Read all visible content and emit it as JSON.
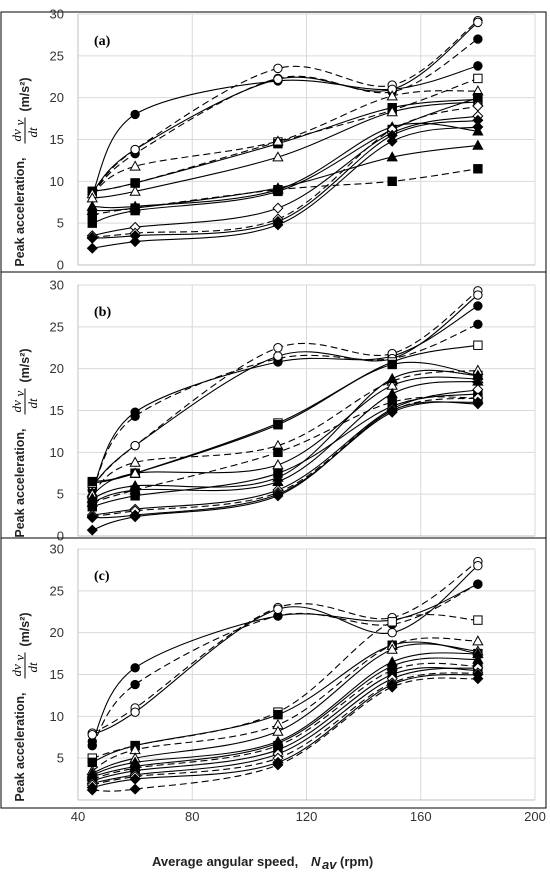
{
  "chart_data": [
    {
      "type": "line",
      "panel_label": "(a)",
      "ylabel_text": "Peak acceleration,",
      "ylabel_math_top": "dv",
      "ylabel_math_sub": "v",
      "ylabel_math_bottom": "dt",
      "ylabel_unit": "(m/s²)",
      "xlim": [
        40,
        200
      ],
      "ylim": [
        0,
        30
      ],
      "yticks": [
        "0",
        "5",
        "10",
        "15",
        "20",
        "25",
        "30"
      ],
      "x": [
        45,
        60,
        110,
        150,
        180
      ],
      "series": [
        {
          "marker": "circle-filled",
          "dash": false,
          "values": [
            8.5,
            18,
            22,
            21,
            23.8
          ]
        },
        {
          "marker": "circle-filled",
          "dash": true,
          "values": [
            8.5,
            13.3,
            22.3,
            20.7,
            27
          ]
        },
        {
          "marker": "circle-open",
          "dash": true,
          "values": [
            8.5,
            13.8,
            23.5,
            21.5,
            29.2
          ]
        },
        {
          "marker": "circle-open",
          "dash": false,
          "values": [
            8.7,
            13.8,
            22.2,
            21,
            29
          ]
        },
        {
          "marker": "square-open",
          "dash": true,
          "values": [
            8.8,
            9.8,
            14.7,
            18.5,
            22.3
          ]
        },
        {
          "marker": "square-filled",
          "dash": false,
          "values": [
            8.8,
            9.8,
            14.5,
            18.8,
            19.8
          ]
        },
        {
          "marker": "triangle-open",
          "dash": true,
          "values": [
            8.5,
            11.8,
            14.8,
            20.2,
            20.8
          ]
        },
        {
          "marker": "triangle-open",
          "dash": false,
          "values": [
            8.0,
            8.8,
            12.9,
            18.3,
            19.5
          ]
        },
        {
          "marker": "triangle-filled",
          "dash": false,
          "values": [
            7.0,
            7.0,
            9.0,
            16.5,
            16.0
          ]
        },
        {
          "marker": "triangle-filled",
          "dash": false,
          "values": [
            6.5,
            6.8,
            9.2,
            12.9,
            14.3
          ]
        },
        {
          "marker": "square-filled",
          "dash": true,
          "values": [
            6.0,
            6.8,
            9.0,
            10.0,
            11.5
          ]
        },
        {
          "marker": "square-filled",
          "dash": false,
          "values": [
            5.0,
            6.5,
            8.8,
            16.2,
            20
          ]
        },
        {
          "marker": "diamond-open",
          "dash": false,
          "values": [
            3.5,
            4.5,
            6.8,
            15.8,
            17.8
          ]
        },
        {
          "marker": "diamond-open",
          "dash": true,
          "values": [
            3.3,
            3.8,
            5.5,
            16.2,
            19.0
          ]
        },
        {
          "marker": "diamond-filled",
          "dash": false,
          "values": [
            3.2,
            3.5,
            5.2,
            15.5,
            17.3
          ]
        },
        {
          "marker": "diamond-filled",
          "dash": false,
          "values": [
            2.0,
            2.8,
            4.8,
            14.8,
            16.5
          ]
        }
      ]
    },
    {
      "type": "line",
      "panel_label": "(b)",
      "ylabel_text": "Peak acceleration,",
      "ylabel_math_top": "dv",
      "ylabel_math_sub": "v",
      "ylabel_math_bottom": "dt",
      "ylabel_unit": "(m/s²)",
      "xlim": [
        40,
        200
      ],
      "ylim": [
        0,
        30
      ],
      "yticks": [
        "0",
        "5",
        "10",
        "15",
        "20",
        "25",
        "30"
      ],
      "x": [
        45,
        60,
        110,
        150,
        180
      ],
      "series": [
        {
          "marker": "circle-filled",
          "dash": false,
          "values": [
            5.5,
            14.8,
            20.8,
            21.5,
            27.5
          ]
        },
        {
          "marker": "circle-filled",
          "dash": true,
          "values": [
            5.5,
            14.3,
            21.2,
            21.2,
            25.3
          ]
        },
        {
          "marker": "circle-open",
          "dash": true,
          "values": [
            6.0,
            10.8,
            22.5,
            21.8,
            29.3
          ]
        },
        {
          "marker": "circle-open",
          "dash": false,
          "values": [
            6.0,
            10.8,
            21.5,
            21.2,
            28.8
          ]
        },
        {
          "marker": "square-open",
          "dash": false,
          "values": [
            6.3,
            7.5,
            13.5,
            20.8,
            22.8
          ]
        },
        {
          "marker": "square-filled",
          "dash": false,
          "values": [
            6.5,
            7.5,
            13.3,
            20.5,
            19.2
          ]
        },
        {
          "marker": "triangle-open",
          "dash": true,
          "values": [
            5.2,
            8.8,
            10.8,
            18.5,
            19.8
          ]
        },
        {
          "marker": "triangle-open",
          "dash": false,
          "values": [
            5.0,
            7.5,
            8.5,
            18.0,
            18.8
          ]
        },
        {
          "marker": "triangle-filled",
          "dash": false,
          "values": [
            4.5,
            6.0,
            7.0,
            18.8,
            19.2
          ]
        },
        {
          "marker": "triangle-filled",
          "dash": false,
          "values": [
            4.0,
            5.5,
            6.5,
            17.0,
            18.5
          ]
        },
        {
          "marker": "square-filled",
          "dash": true,
          "values": [
            4.0,
            5.5,
            10.0,
            16.0,
            16.5
          ]
        },
        {
          "marker": "square-filled",
          "dash": false,
          "values": [
            3.5,
            4.8,
            7.5,
            15.5,
            17.0
          ]
        },
        {
          "marker": "diamond-open",
          "dash": false,
          "values": [
            2.5,
            3.2,
            5.5,
            15.2,
            17.5
          ]
        },
        {
          "marker": "diamond-open",
          "dash": true,
          "values": [
            2.3,
            3.0,
            5.2,
            15.0,
            16.5
          ]
        },
        {
          "marker": "diamond-filled",
          "dash": false,
          "values": [
            2.2,
            2.5,
            5.0,
            14.8,
            16.0
          ]
        },
        {
          "marker": "diamond-filled",
          "dash": false,
          "values": [
            0.7,
            2.3,
            4.8,
            15.0,
            15.8
          ]
        }
      ]
    },
    {
      "type": "line",
      "panel_label": "(c)",
      "ylabel_text": "Peak acceleration,",
      "ylabel_math_top": "dv",
      "ylabel_math_sub": "v",
      "ylabel_math_bottom": "dt",
      "ylabel_unit": "(m/s²)",
      "xlim": [
        40,
        200
      ],
      "ylim": [
        0,
        30
      ],
      "yticks": [
        "",
        "5",
        "10",
        "15",
        "20",
        "25",
        "30"
      ],
      "xticks": [
        "40",
        "80",
        "120",
        "160",
        "200"
      ],
      "xlabel_text": "Average angular speed,",
      "xlabel_math": "N",
      "xlabel_math_sub": "av",
      "xlabel_unit": "(rpm)",
      "x": [
        45,
        60,
        110,
        150,
        180
      ],
      "series": [
        {
          "marker": "circle-filled",
          "dash": false,
          "values": [
            7.0,
            15.8,
            22.0,
            21.5,
            25.8
          ]
        },
        {
          "marker": "circle-filled",
          "dash": true,
          "values": [
            6.5,
            13.8,
            22.0,
            21.0,
            25.8
          ]
        },
        {
          "marker": "circle-open",
          "dash": true,
          "values": [
            8.0,
            11.0,
            23.0,
            21.8,
            28.5
          ]
        },
        {
          "marker": "circle-open",
          "dash": false,
          "values": [
            7.8,
            10.5,
            22.8,
            20.0,
            28.0
          ]
        },
        {
          "marker": "square-open",
          "dash": true,
          "values": [
            5.0,
            6.5,
            10.5,
            21.3,
            21.5
          ]
        },
        {
          "marker": "square-filled",
          "dash": false,
          "values": [
            4.5,
            6.5,
            10.2,
            18.5,
            17.5
          ]
        },
        {
          "marker": "triangle-open",
          "dash": true,
          "values": [
            3.5,
            6.0,
            9.0,
            18.5,
            19.0
          ]
        },
        {
          "marker": "triangle-open",
          "dash": false,
          "values": [
            3.2,
            5.0,
            8.2,
            18.0,
            17.8
          ]
        },
        {
          "marker": "triangle-filled",
          "dash": false,
          "values": [
            3.0,
            4.5,
            7.0,
            16.5,
            17.5
          ]
        },
        {
          "marker": "triangle-filled",
          "dash": false,
          "values": [
            2.8,
            4.0,
            6.8,
            16.0,
            16.8
          ]
        },
        {
          "marker": "square-filled",
          "dash": true,
          "values": [
            2.5,
            3.8,
            6.5,
            15.5,
            16.0
          ]
        },
        {
          "marker": "square-filled",
          "dash": false,
          "values": [
            2.3,
            3.5,
            6.0,
            15.0,
            15.5
          ]
        },
        {
          "marker": "diamond-open",
          "dash": false,
          "values": [
            2.0,
            3.0,
            5.5,
            14.5,
            15.8
          ]
        },
        {
          "marker": "diamond-open",
          "dash": true,
          "values": [
            1.8,
            2.8,
            5.0,
            14.0,
            15.2
          ]
        },
        {
          "marker": "diamond-filled",
          "dash": false,
          "values": [
            1.5,
            2.5,
            4.5,
            13.8,
            15.0
          ]
        },
        {
          "marker": "diamond-filled",
          "dash": true,
          "values": [
            1.2,
            1.3,
            4.2,
            13.5,
            14.5
          ]
        }
      ]
    }
  ]
}
